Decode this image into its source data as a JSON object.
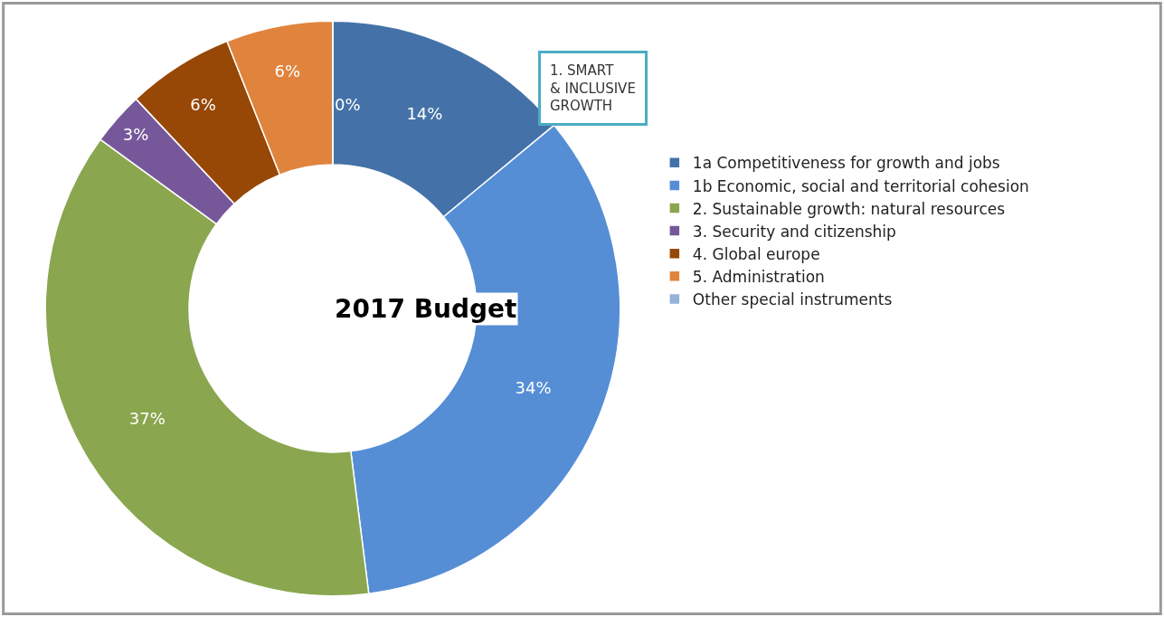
{
  "chart_data": {
    "type": "donut",
    "title": "2017 Budget",
    "categories": [
      "1a Competitiveness for growth and jobs",
      "1b Economic, social and territorial cohesion",
      "2. Sustainable growth: natural resources",
      "3. Security and citizenship",
      "4. Global europe",
      "5. Administration",
      "Other special instruments"
    ],
    "values": [
      14,
      34,
      37,
      3,
      6,
      6,
      0
    ],
    "value_labels": [
      "14%",
      "34%",
      "37%",
      "3%",
      "6%",
      "6%",
      "0%"
    ],
    "colors": [
      "#4472a8",
      "#558ed5",
      "#8aa64f",
      "#76589a",
      "#974706",
      "#e0843d",
      "#95b3d7"
    ],
    "annotations": [
      "1. SMART\n& INCLUSIVE\nGROWTH"
    ],
    "legend": "right"
  }
}
